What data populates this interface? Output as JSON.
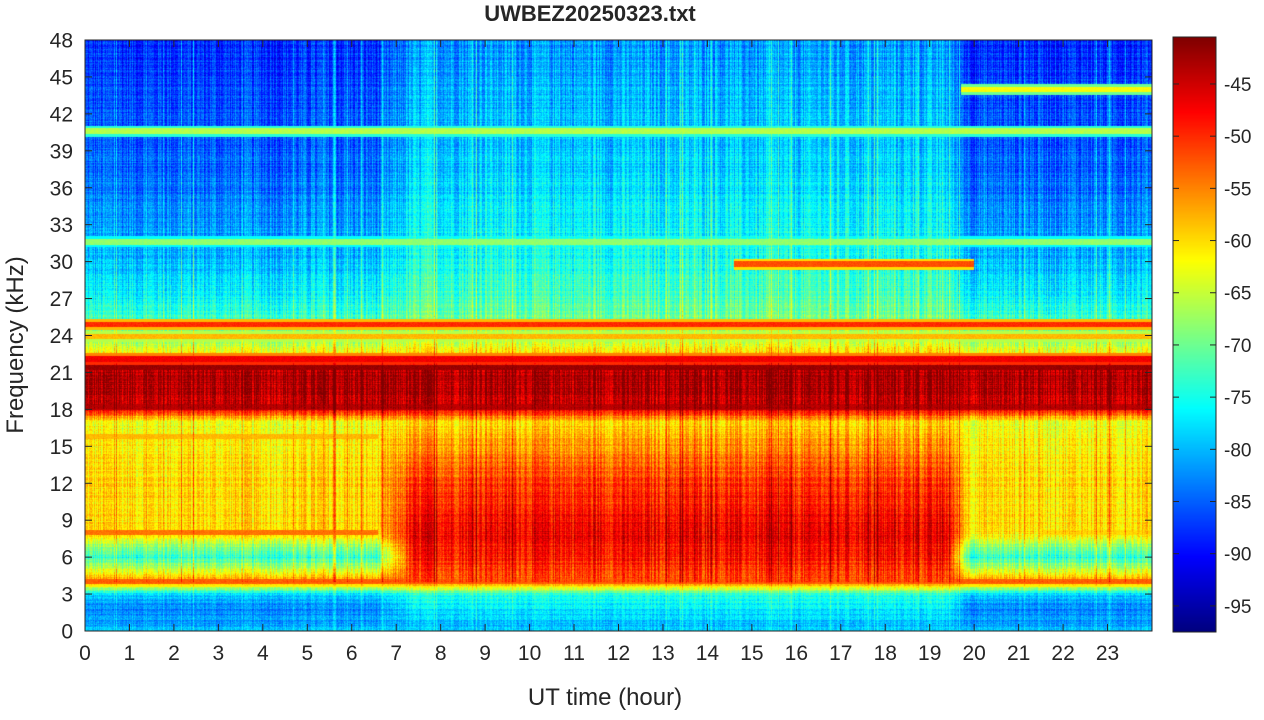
{
  "chart_data": {
    "type": "heatmap",
    "title": "UWBEZ20250323.txt",
    "xlabel": "UT time (hour)",
    "ylabel": "Frequency (kHz)",
    "xlim": [
      0,
      24
    ],
    "ylim": [
      0,
      48
    ],
    "x_ticks": [
      0,
      1,
      2,
      3,
      4,
      5,
      6,
      7,
      8,
      9,
      10,
      11,
      12,
      13,
      14,
      15,
      16,
      17,
      18,
      19,
      20,
      21,
      22,
      23
    ],
    "y_ticks": [
      0,
      3,
      6,
      9,
      12,
      15,
      18,
      21,
      24,
      27,
      30,
      33,
      36,
      39,
      42,
      45,
      48
    ],
    "colorbar": {
      "range": [
        -97.5,
        -40.5
      ],
      "ticks": [
        -45,
        -50,
        -55,
        -60,
        -65,
        -70,
        -75,
        -80,
        -85,
        -90,
        -95
      ],
      "colormap": "jet"
    },
    "description_levels": {
      "hours": [
        0,
        3,
        6,
        6.8,
        9,
        12,
        15,
        18,
        19.6,
        21,
        24
      ],
      "freq_profile_kHz": [
        0,
        1,
        2,
        3,
        4,
        6,
        8,
        10,
        12,
        15,
        17,
        18.2,
        21,
        22,
        24,
        27,
        30,
        36,
        42,
        48
      ],
      "night_level_dB": [
        -80,
        -82,
        -83,
        -78,
        -55,
        -74,
        -60,
        -60,
        -60,
        -61,
        -63,
        -44,
        -43,
        -60,
        -70,
        -76,
        -80,
        -84,
        -86,
        -88
      ],
      "day_level_dB": [
        -80,
        -79,
        -77,
        -74,
        -52,
        -49,
        -47,
        -49,
        -51,
        -56,
        -60,
        -44,
        -43,
        -58,
        -68,
        -72,
        -75,
        -78,
        -80,
        -82
      ]
    },
    "narrowband_lines": [
      {
        "freq_kHz": 18.2,
        "level_dB": -44,
        "x_range": [
          0,
          24
        ]
      },
      {
        "freq_kHz": 21.4,
        "level_dB": -42,
        "x_range": [
          0,
          24
        ]
      },
      {
        "freq_kHz": 22.1,
        "level_dB": -47,
        "x_range": [
          0,
          24
        ]
      },
      {
        "freq_kHz": 24.9,
        "level_dB": -50,
        "x_range": [
          0,
          24
        ]
      },
      {
        "freq_kHz": 23.9,
        "level_dB": -58,
        "x_range": [
          0,
          24
        ]
      },
      {
        "freq_kHz": 4.0,
        "level_dB": -53,
        "x_range": [
          0,
          24
        ]
      },
      {
        "freq_kHz": 8.0,
        "level_dB": -54,
        "x_range": [
          0,
          6.6
        ]
      },
      {
        "freq_kHz": 8.0,
        "level_dB": -60,
        "x_range": [
          21.5,
          24
        ]
      },
      {
        "freq_kHz": 29.8,
        "level_dB": -52,
        "x_range": [
          14.6,
          20
        ]
      },
      {
        "freq_kHz": 31.6,
        "level_dB": -68,
        "x_range": [
          0,
          24
        ]
      },
      {
        "freq_kHz": 40.6,
        "level_dB": -66,
        "x_range": [
          0,
          24
        ]
      },
      {
        "freq_kHz": 44.0,
        "level_dB": -62,
        "x_range": [
          19.7,
          24
        ]
      },
      {
        "freq_kHz": 15.8,
        "level_dB": -58,
        "x_range": [
          0,
          6.6
        ]
      },
      {
        "freq_kHz": 20.5,
        "level_dB": -45,
        "x_range": [
          0,
          24
        ]
      }
    ]
  }
}
